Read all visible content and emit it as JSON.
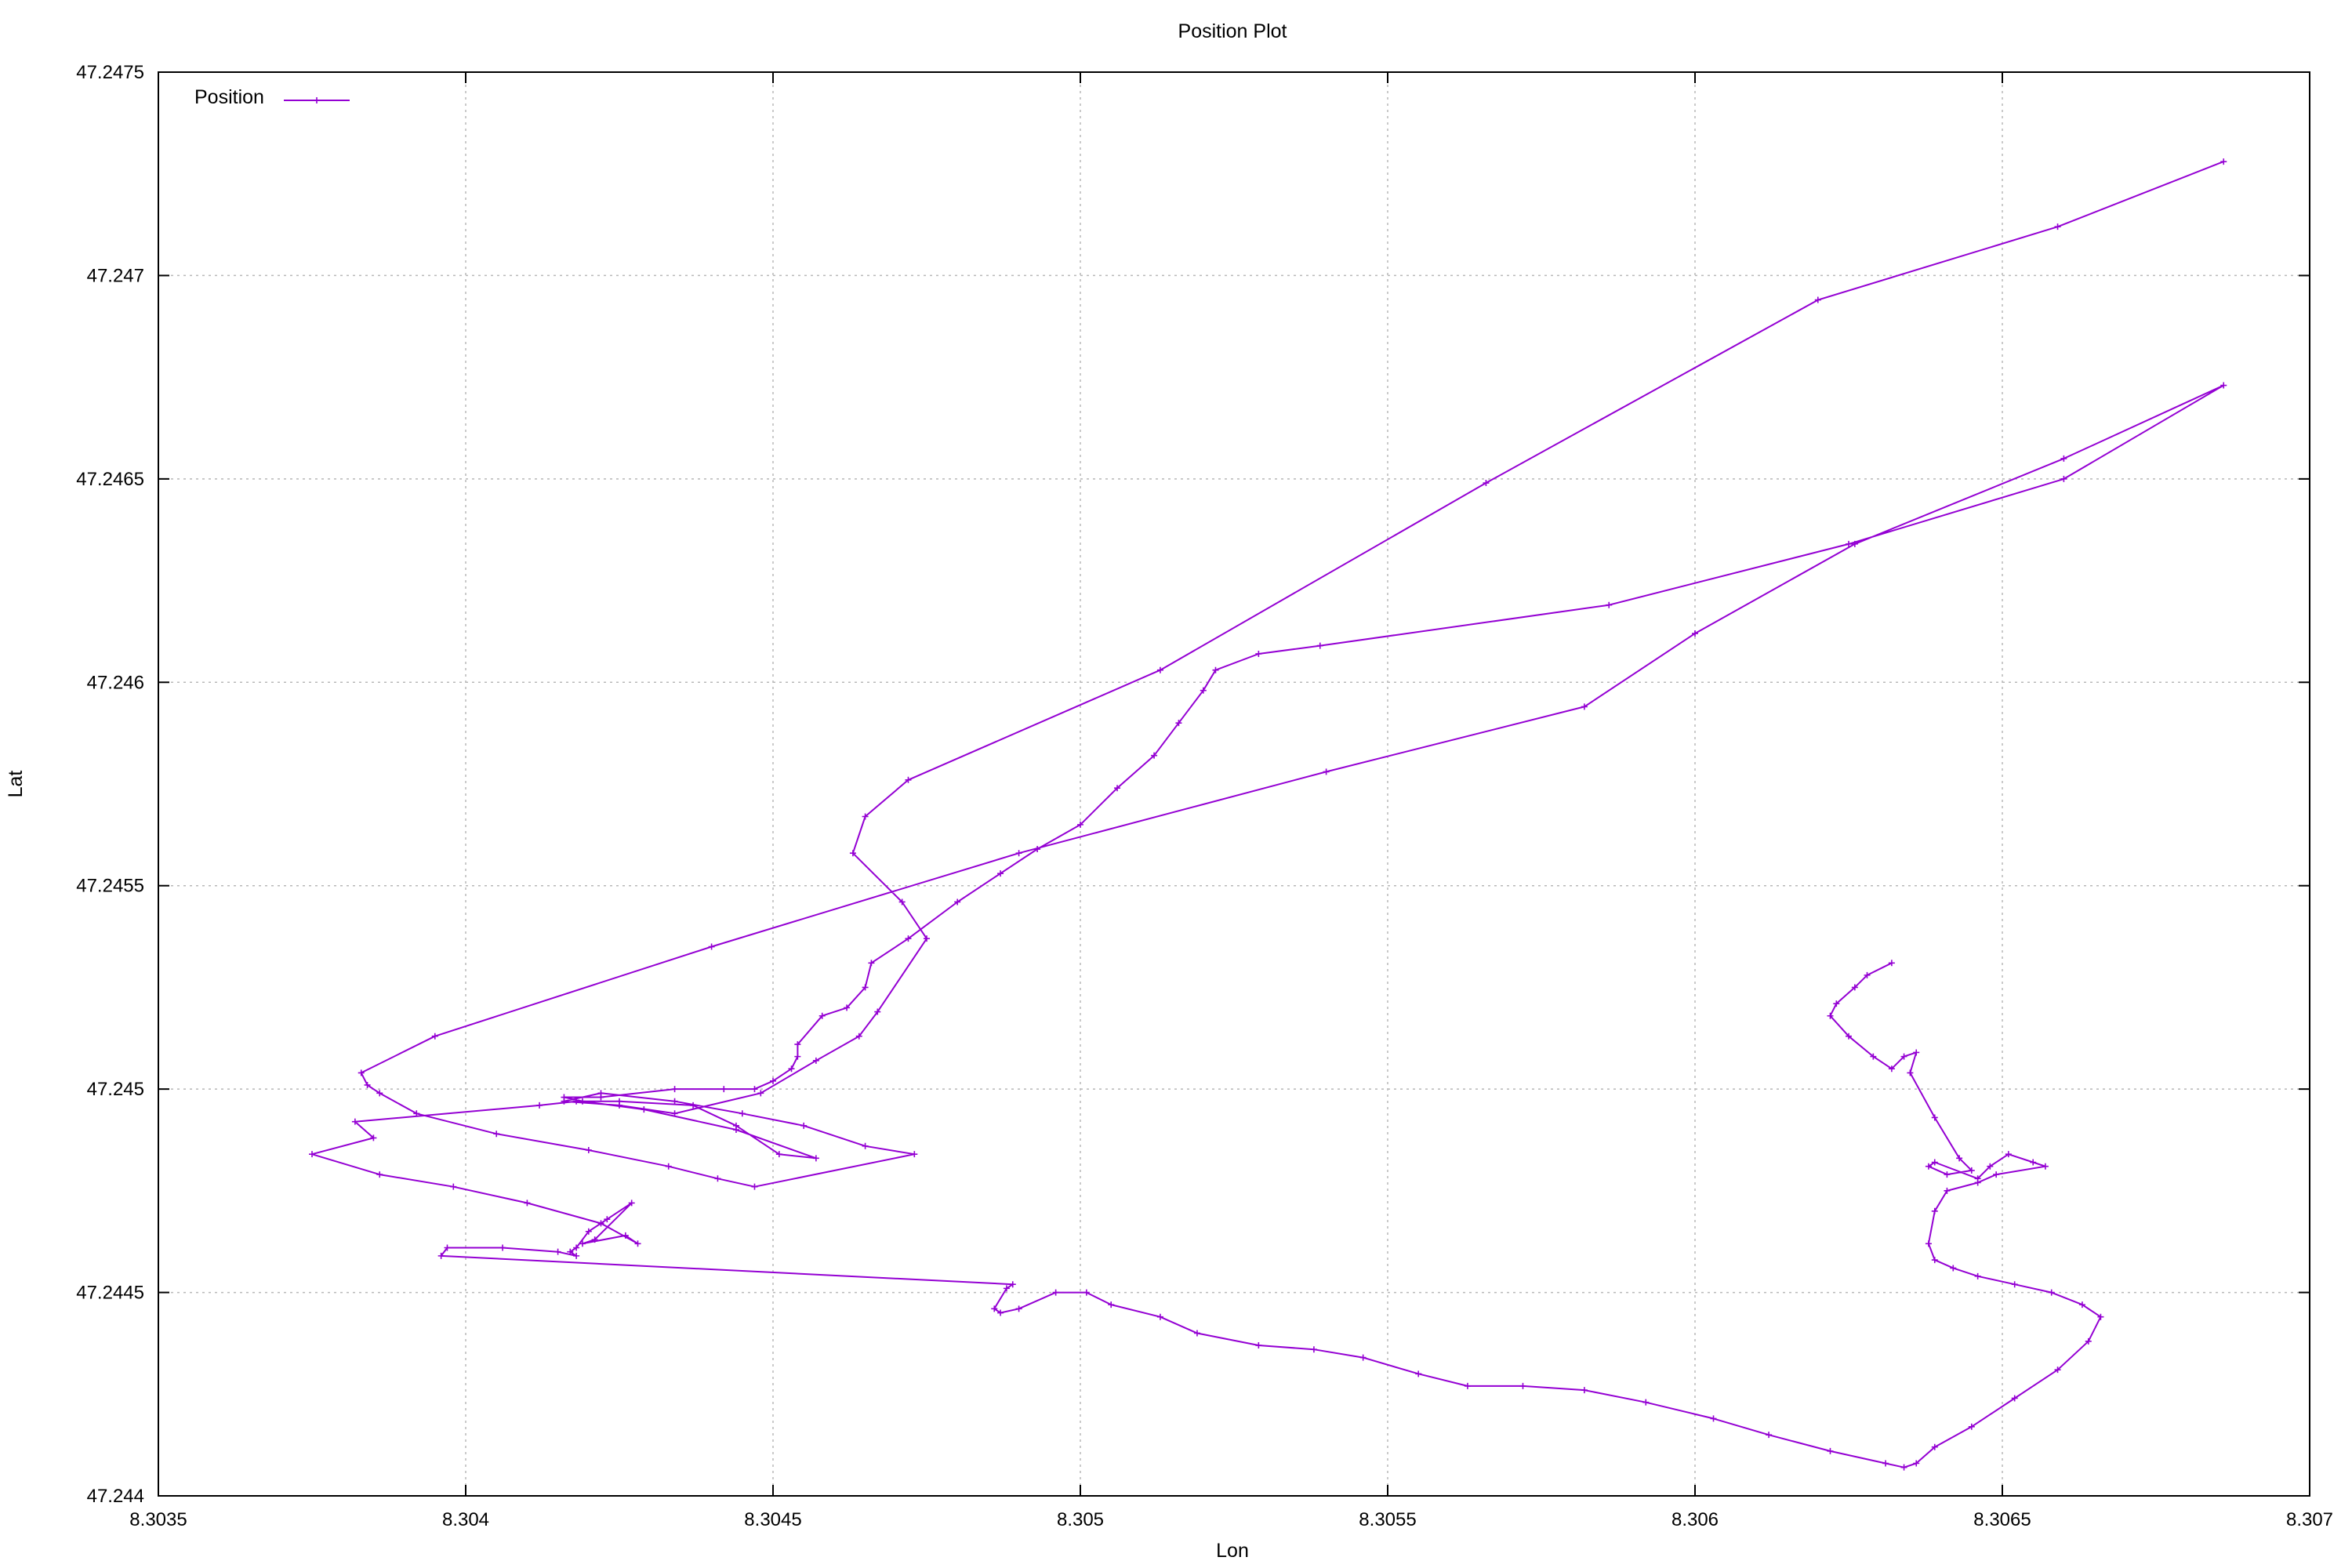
{
  "chart_data": {
    "type": "line",
    "title": "Position Plot",
    "xlabel": "Lon",
    "ylabel": "Lat",
    "xlim": [
      8.3035,
      8.307
    ],
    "ylim": [
      47.244,
      47.2475
    ],
    "x_ticks": [
      "8.3035",
      "8.304",
      "8.3045",
      "8.305",
      "8.3055",
      "8.306",
      "8.3065",
      "8.307"
    ],
    "y_ticks": [
      "47.244",
      "47.2445",
      "47.245",
      "47.2455",
      "47.246",
      "47.2465",
      "47.247",
      "47.2475"
    ],
    "grid": true,
    "legend_position": "top-left",
    "color": "#9400d3",
    "marker": "plus",
    "series": [
      {
        "name": "Position",
        "x": [
          8.30632,
          8.30628,
          8.30626,
          8.30623,
          8.30622,
          8.30625,
          8.30629,
          8.30632,
          8.30634,
          8.30636,
          8.30635,
          8.30639,
          8.30643,
          8.30645,
          8.30641,
          8.30638,
          8.30639,
          8.30646,
          8.30648,
          8.30651,
          8.30655,
          8.30657,
          8.30649,
          8.30646,
          8.30641,
          8.30639,
          8.30638,
          8.30639,
          8.30642,
          8.30646,
          8.30652,
          8.30658,
          8.30663,
          8.30666,
          8.30664,
          8.30659,
          8.30652,
          8.30645,
          8.30639,
          8.30636,
          8.30634,
          8.30631,
          8.30622,
          8.30612,
          8.30603,
          8.30592,
          8.30582,
          8.30572,
          8.30563,
          8.30555,
          8.30546,
          8.30538,
          8.30529,
          8.30519,
          8.30513,
          8.30505,
          8.30501,
          8.30496,
          8.3049,
          8.30487,
          8.30486,
          8.30488,
          8.30489,
          8.30396,
          8.30397,
          8.30406,
          8.30415,
          8.30418,
          8.30417,
          8.30418,
          8.3042,
          8.30423,
          8.30427,
          8.30421,
          8.30419,
          8.30426,
          8.30428,
          8.30422,
          8.3041,
          8.30398,
          8.30386,
          8.30375,
          8.30385,
          8.30382,
          8.30412,
          8.30418,
          8.30425,
          8.30437,
          8.30444,
          8.30451,
          8.30457,
          8.30444,
          8.30429,
          8.30419,
          8.30416,
          8.30422,
          8.30434,
          8.30442,
          8.30447,
          8.3045,
          8.30453,
          8.30454,
          8.30454,
          8.30458,
          8.30462,
          8.30465,
          8.30466,
          8.30472,
          8.3048,
          8.30487,
          8.30493,
          8.305,
          8.30506,
          8.30512,
          8.30516,
          8.3052,
          8.30522,
          8.30529,
          8.30539,
          8.30586,
          8.30625,
          8.3066,
          8.30686,
          8.3066,
          8.30626,
          8.306,
          8.30582,
          8.3054,
          8.3049,
          8.3044,
          8.30395,
          8.30383,
          8.30384,
          8.30386,
          8.30392,
          8.30405,
          8.3042,
          8.30433,
          8.30441,
          8.30447,
          8.30473,
          8.30465,
          8.30455,
          8.30445,
          8.30434,
          8.30422,
          8.30416,
          8.30425,
          8.30434,
          8.30448,
          8.30457,
          8.30464,
          8.30467,
          8.30475,
          8.30471,
          8.30463,
          8.30465,
          8.30472,
          8.30513,
          8.30566,
          8.3062,
          8.30659,
          8.30686
        ],
        "y": [
          47.24531,
          47.24528,
          47.24525,
          47.24521,
          47.24518,
          47.24513,
          47.24508,
          47.24505,
          47.24508,
          47.24509,
          47.24504,
          47.24493,
          47.24483,
          47.2448,
          47.24479,
          47.24481,
          47.24482,
          47.24478,
          47.24481,
          47.24484,
          47.24482,
          47.24481,
          47.24479,
          47.24477,
          47.24475,
          47.2447,
          47.24462,
          47.24458,
          47.24456,
          47.24454,
          47.24452,
          47.2445,
          47.24447,
          47.24444,
          47.24438,
          47.24431,
          47.24424,
          47.24417,
          47.24412,
          47.24408,
          47.24407,
          47.24408,
          47.24411,
          47.24415,
          47.24419,
          47.24423,
          47.24426,
          47.24427,
          47.24427,
          47.2443,
          47.24434,
          47.24436,
          47.24437,
          47.2444,
          47.24444,
          47.24447,
          47.2445,
          47.2445,
          47.24446,
          47.24445,
          47.24446,
          47.24451,
          47.24452,
          47.24459,
          47.24461,
          47.24461,
          47.2446,
          47.24459,
          47.2446,
          47.24461,
          47.24465,
          47.24468,
          47.24472,
          47.24463,
          47.24462,
          47.24464,
          47.24462,
          47.24467,
          47.24472,
          47.24476,
          47.24479,
          47.24484,
          47.24488,
          47.24492,
          47.24496,
          47.24497,
          47.24497,
          47.24496,
          47.24491,
          47.24484,
          47.24483,
          47.2449,
          47.24495,
          47.24497,
          47.24498,
          47.24498,
          47.245,
          47.245,
          47.245,
          47.24502,
          47.24505,
          47.24508,
          47.24511,
          47.24518,
          47.2452,
          47.24525,
          47.24531,
          47.24537,
          47.24546,
          47.24553,
          47.24559,
          47.24565,
          47.24574,
          47.24582,
          47.2459,
          47.24598,
          47.24603,
          47.24607,
          47.24609,
          47.24619,
          47.24634,
          47.2465,
          47.24673,
          47.24655,
          47.24634,
          47.24612,
          47.24594,
          47.24578,
          47.24558,
          47.24535,
          47.24513,
          47.24504,
          47.24501,
          47.24499,
          47.24494,
          47.24489,
          47.24485,
          47.24481,
          47.24478,
          47.24476,
          47.24484,
          47.24486,
          47.24491,
          47.24494,
          47.24497,
          47.24499,
          47.24497,
          47.24496,
          47.24494,
          47.24499,
          47.24507,
          47.24513,
          47.24519,
          47.24537,
          47.24546,
          47.24558,
          47.24567,
          47.24576,
          47.24603,
          47.24649,
          47.24694,
          47.24712,
          47.24728
        ]
      }
    ]
  }
}
